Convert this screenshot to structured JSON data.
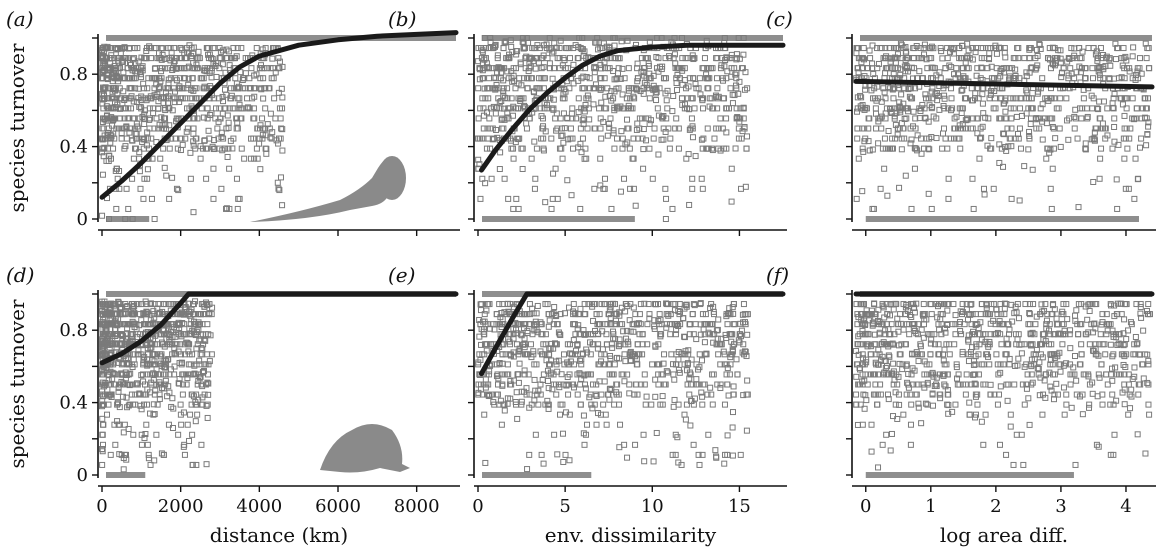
{
  "figure": {
    "ylabel": "species turnover"
  },
  "colors": {
    "points": "#7a7a7a",
    "fit": "#1a1a1a",
    "axis": "#111111"
  },
  "chart_data": [
    {
      "panel": "(a)",
      "type": "scatter",
      "xlabel": "",
      "ylabel": "species turnover",
      "xlim": [
        0,
        9000
      ],
      "ylim": [
        0,
        1
      ],
      "xticks": [
        0,
        2000,
        4000,
        6000,
        8000
      ],
      "xtick_labels": [],
      "yticks": [
        0,
        0.4,
        0.8
      ],
      "ytick_labels": [
        "0",
        "0.4",
        "0.8"
      ],
      "fit": {
        "x": [
          0,
          500,
          1000,
          1500,
          2000,
          2500,
          3000,
          3500,
          4000,
          5000,
          6000,
          7000,
          8000,
          9000
        ],
        "y": [
          0.12,
          0.21,
          0.31,
          0.42,
          0.53,
          0.64,
          0.75,
          0.84,
          0.9,
          0.96,
          0.99,
          1.01,
          1.02,
          1.03
        ]
      },
      "cloud": {
        "xmax": 4600,
        "ymin": 0.0,
        "ymax": 0.96
      },
      "bands": [
        {
          "y": 1.0,
          "x0": 0,
          "x1": 9000
        },
        {
          "y": 0.0,
          "x0": 0,
          "x1": 1200
        }
      ]
    },
    {
      "panel": "(b)",
      "type": "scatter",
      "xlabel": "",
      "ylabel": "",
      "xlim": [
        0,
        17.5
      ],
      "ylim": [
        0,
        1
      ],
      "xticks": [
        0,
        5,
        10,
        15
      ],
      "xtick_labels": [],
      "yticks": [
        0,
        0.4,
        0.8
      ],
      "ytick_labels": [],
      "fit": {
        "x": [
          0.2,
          1,
          2,
          3,
          4,
          5,
          6,
          7,
          8,
          10,
          12,
          15,
          17.5
        ],
        "y": [
          0.27,
          0.38,
          0.5,
          0.61,
          0.7,
          0.78,
          0.85,
          0.9,
          0.93,
          0.95,
          0.96,
          0.96,
          0.96
        ]
      },
      "cloud": {
        "xmax": 15.5,
        "ymin": 0.0,
        "ymax": 0.99
      },
      "bands": [
        {
          "y": 1.0,
          "x0": 0,
          "x1": 17.5
        },
        {
          "y": 0.0,
          "x0": 0,
          "x1": 9
        }
      ]
    },
    {
      "panel": "(c)",
      "type": "scatter",
      "xlabel": "",
      "ylabel": "",
      "xlim": [
        -0.15,
        4.4
      ],
      "ylim": [
        0,
        1
      ],
      "xticks": [
        0,
        1,
        2,
        3,
        4
      ],
      "xtick_labels": [],
      "yticks": [
        0,
        0.4,
        0.8
      ],
      "ytick_labels": [],
      "fit": {
        "x": [
          -0.15,
          4.4
        ],
        "y": [
          0.76,
          0.73
        ]
      },
      "cloud": {
        "xmax": 4.4,
        "ymin": 0.03,
        "ymax": 0.97
      },
      "bands": [
        {
          "y": 1.0,
          "x0": -0.15,
          "x1": 4.4
        },
        {
          "y": 0.0,
          "x0": 0,
          "x1": 4.2
        }
      ]
    },
    {
      "panel": "(d)",
      "type": "scatter",
      "xlabel": "distance (km)",
      "ylabel": "species turnover",
      "xlim": [
        0,
        9000
      ],
      "ylim": [
        0,
        1
      ],
      "xticks": [
        0,
        2000,
        4000,
        6000,
        8000
      ],
      "xtick_labels": [
        "0",
        "2000",
        "4000",
        "6000",
        "8000"
      ],
      "yticks": [
        0,
        0.4,
        0.8
      ],
      "ytick_labels": [
        "0",
        "0.4",
        "0.8"
      ],
      "fit": {
        "x": [
          0,
          500,
          1000,
          1500,
          2000,
          2200,
          2500,
          9000
        ],
        "y": [
          0.62,
          0.67,
          0.74,
          0.83,
          0.95,
          1.0,
          1.0,
          1.0
        ]
      },
      "cloud": {
        "xmax": 2800,
        "ymin": 0.03,
        "ymax": 0.96
      },
      "bands": [
        {
          "y": 1.0,
          "x0": 0,
          "x1": 9000
        },
        {
          "y": 0.0,
          "x0": 0,
          "x1": 1100
        }
      ]
    },
    {
      "panel": "(e)",
      "type": "scatter",
      "xlabel": "env. dissimilarity",
      "ylabel": "",
      "xlim": [
        0,
        17.5
      ],
      "ylim": [
        0,
        1
      ],
      "xticks": [
        0,
        5,
        10,
        15
      ],
      "xtick_labels": [
        "0",
        "5",
        "10",
        "15"
      ],
      "yticks": [
        0,
        0.4,
        0.8
      ],
      "ytick_labels": [],
      "fit": {
        "x": [
          0.2,
          1,
          2,
          2.8,
          3.5,
          17.5
        ],
        "y": [
          0.56,
          0.7,
          0.87,
          1.0,
          1.0,
          1.0
        ]
      },
      "cloud": {
        "xmax": 15.5,
        "ymin": 0.03,
        "ymax": 0.95
      },
      "bands": [
        {
          "y": 1.0,
          "x0": 0,
          "x1": 17.5
        },
        {
          "y": 0.0,
          "x0": 0,
          "x1": 6.5
        }
      ]
    },
    {
      "panel": "(f)",
      "type": "scatter",
      "xlabel": "log area diff.",
      "ylabel": "",
      "xlim": [
        -0.15,
        4.4
      ],
      "ylim": [
        0,
        1
      ],
      "xticks": [
        0,
        1,
        2,
        3,
        4
      ],
      "xtick_labels": [
        "0",
        "1",
        "2",
        "3",
        "4"
      ],
      "yticks": [
        0,
        0.4,
        0.8
      ],
      "ytick_labels": [],
      "fit": {
        "x": [
          -0.15,
          4.4
        ],
        "y": [
          1.0,
          1.0
        ]
      },
      "cloud": {
        "xmax": 4.4,
        "ymin": 0.03,
        "ymax": 0.95
      },
      "bands": [
        {
          "y": 1.0,
          "x0": -0.15,
          "x1": 4.4
        },
        {
          "y": 0.0,
          "x0": 0,
          "x1": 3.2
        }
      ]
    }
  ]
}
